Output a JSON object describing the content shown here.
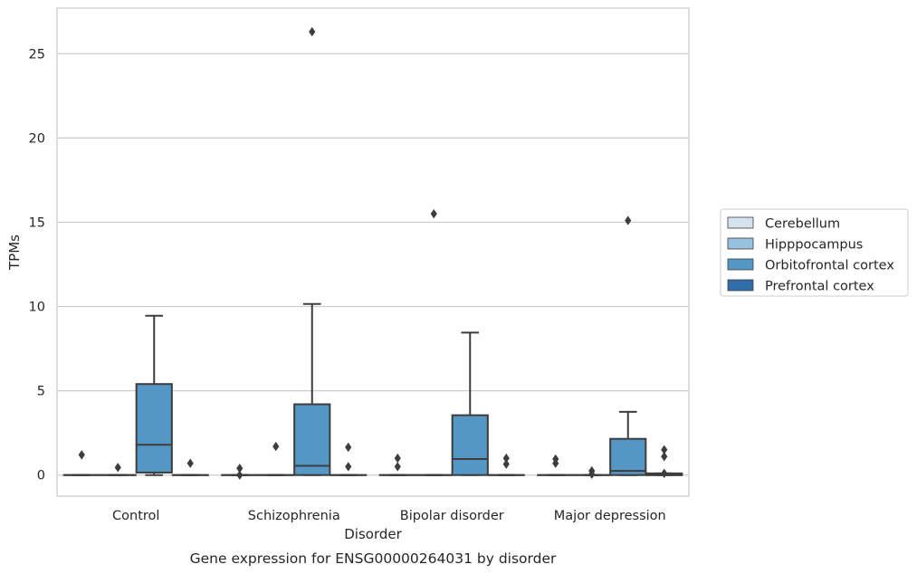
{
  "chart_data": {
    "type": "box",
    "title": "Gene expression for ENSG00000264031 by disorder",
    "xlabel": "Disorder",
    "ylabel": "TPMs",
    "categories": [
      "Control",
      "Schizophrenia",
      "Bipolar disorder",
      "Major depression"
    ],
    "ylim": [
      -1.25,
      27.7
    ],
    "yticks": [
      0,
      5,
      10,
      15,
      20,
      25
    ],
    "grid": "horizontal",
    "legend_position": "right",
    "series": [
      {
        "name": "Cerebellum",
        "color": "#d5e2ef",
        "boxes": [
          {
            "category": "Control",
            "q1": 0,
            "median": 0,
            "q3": 0,
            "whisker_low": 0,
            "whisker_high": 0,
            "outliers": [
              1.2
            ]
          },
          {
            "category": "Schizophrenia",
            "q1": 0,
            "median": 0,
            "q3": 0,
            "whisker_low": 0,
            "whisker_high": 0,
            "outliers": [
              0.4,
              0.0
            ]
          },
          {
            "category": "Bipolar disorder",
            "q1": 0,
            "median": 0,
            "q3": 0,
            "whisker_low": 0,
            "whisker_high": 0,
            "outliers": [
              1.0,
              0.5
            ]
          },
          {
            "category": "Major depression",
            "q1": 0,
            "median": 0,
            "q3": 0,
            "whisker_low": 0,
            "whisker_high": 0,
            "outliers": [
              0.95,
              0.7
            ]
          }
        ]
      },
      {
        "name": "Hipppocampus",
        "color": "#99c0dc",
        "boxes": [
          {
            "category": "Control",
            "q1": 0,
            "median": 0,
            "q3": 0,
            "whisker_low": 0,
            "whisker_high": 0,
            "outliers": [
              0.45
            ]
          },
          {
            "category": "Schizophrenia",
            "q1": 0,
            "median": 0,
            "q3": 0,
            "whisker_low": 0,
            "whisker_high": 0,
            "outliers": [
              1.7
            ]
          },
          {
            "category": "Bipolar disorder",
            "q1": 0,
            "median": 0,
            "q3": 0,
            "whisker_low": 0,
            "whisker_high": 0,
            "outliers": [
              15.5
            ]
          },
          {
            "category": "Major depression",
            "q1": 0,
            "median": 0,
            "q3": 0,
            "whisker_low": 0,
            "whisker_high": 0,
            "outliers": [
              0.25,
              0.05
            ]
          }
        ]
      },
      {
        "name": "Orbitofrontal cortex",
        "color": "#5497c4",
        "boxes": [
          {
            "category": "Control",
            "q1": 0.15,
            "median": 1.8,
            "q3": 5.4,
            "whisker_low": 0,
            "whisker_high": 9.45,
            "outliers": []
          },
          {
            "category": "Schizophrenia",
            "q1": 0.0,
            "median": 0.55,
            "q3": 4.2,
            "whisker_low": 0,
            "whisker_high": 10.15,
            "outliers": [
              26.3
            ]
          },
          {
            "category": "Bipolar disorder",
            "q1": 0.0,
            "median": 0.95,
            "q3": 3.55,
            "whisker_low": 0,
            "whisker_high": 8.45,
            "outliers": []
          },
          {
            "category": "Major depression",
            "q1": 0.0,
            "median": 0.25,
            "q3": 2.15,
            "whisker_low": 0,
            "whisker_high": 3.75,
            "outliers": [
              15.1
            ]
          }
        ]
      },
      {
        "name": "Prefrontal cortex",
        "color": "#2f6ea8",
        "boxes": [
          {
            "category": "Control",
            "q1": 0,
            "median": 0,
            "q3": 0,
            "whisker_low": 0,
            "whisker_high": 0,
            "outliers": [
              0.7
            ]
          },
          {
            "category": "Schizophrenia",
            "q1": 0,
            "median": 0,
            "q3": 0,
            "whisker_low": 0,
            "whisker_high": 0,
            "outliers": [
              1.65,
              0.5
            ]
          },
          {
            "category": "Bipolar disorder",
            "q1": 0,
            "median": 0,
            "q3": 0,
            "whisker_low": 0,
            "whisker_high": 0,
            "outliers": [
              1.0,
              0.65
            ]
          },
          {
            "category": "Major depression",
            "q1": 0.0,
            "median": 0.0,
            "q3": 0.1,
            "whisker_low": 0,
            "whisker_high": 0.1,
            "outliers": [
              1.5,
              1.1,
              0.1
            ]
          }
        ]
      }
    ]
  }
}
